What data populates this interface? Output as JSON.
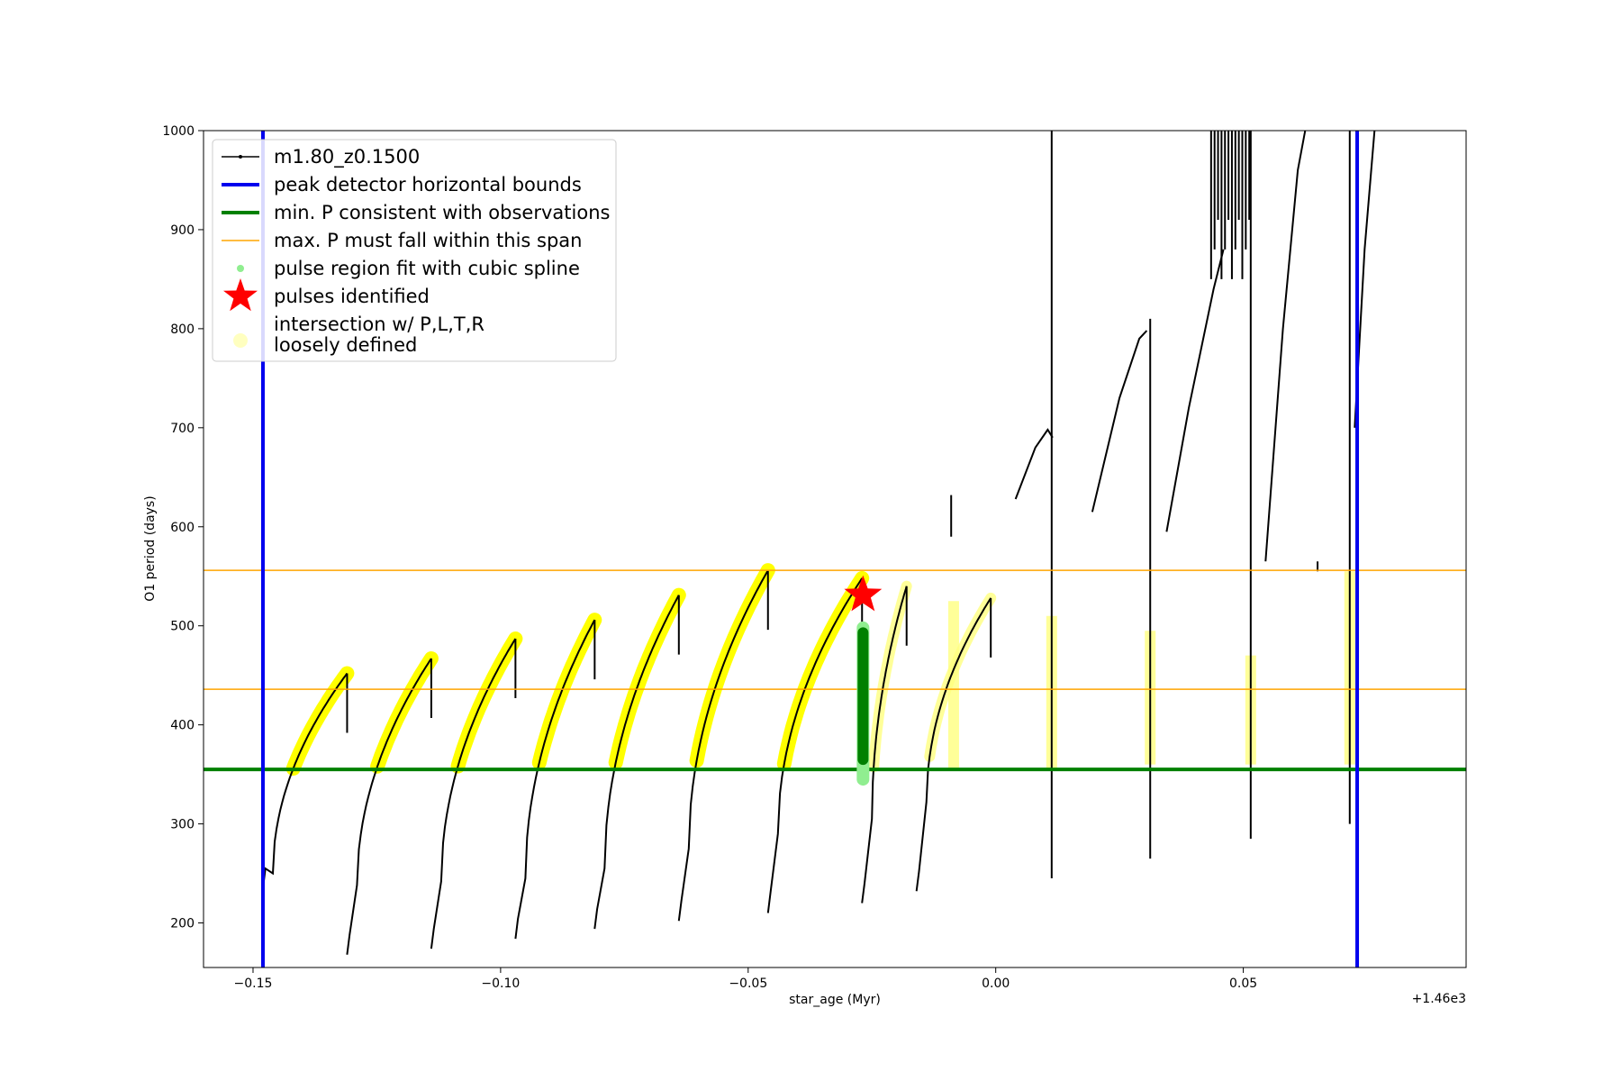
{
  "chart_data": {
    "type": "line",
    "xlabel": "star_age (Myr)",
    "ylabel": "O1 period (days)",
    "x_offset_label": "+1.46e3",
    "xlim": [
      -0.16,
      0.095
    ],
    "ylim": [
      155,
      1000
    ],
    "x_ticks": [
      -0.15,
      -0.1,
      -0.05,
      0.0,
      0.05
    ],
    "x_tick_labels": [
      "−0.15",
      "−0.10",
      "−0.05",
      "0.00",
      "0.05"
    ],
    "y_ticks": [
      200,
      300,
      400,
      500,
      600,
      700,
      800,
      900,
      1000
    ],
    "y_tick_labels": [
      "200",
      "300",
      "400",
      "500",
      "600",
      "700",
      "800",
      "900",
      "1000"
    ],
    "legend_position": "top-left",
    "legend": [
      {
        "label": "m1.80_z0.1500",
        "kind": "line-marker",
        "color": "#000000"
      },
      {
        "label": "peak detector horizontal bounds",
        "kind": "line",
        "color": "#0000ee"
      },
      {
        "label": "min. P consistent with observations",
        "kind": "line",
        "color": "#008000"
      },
      {
        "label": "max. P must fall within this span",
        "kind": "thin-line",
        "color": "#ffa500"
      },
      {
        "label": "pulse region fit with cubic spline",
        "kind": "dot",
        "color": "#90ee90"
      },
      {
        "label": "pulses identified",
        "kind": "star",
        "color": "#ff0000"
      },
      {
        "label": "intersection w/ P,L,T,R\nloosely defined",
        "kind": "big-dot",
        "color": "#ffffc0"
      }
    ],
    "vertical_bounds": {
      "color": "#0000ee",
      "x": [
        -0.148,
        0.073
      ]
    },
    "min_period": {
      "color": "#008000",
      "y": 355
    },
    "max_period_span": {
      "color": "#ffa500",
      "y": [
        436,
        556
      ]
    },
    "cycles": [
      {
        "start": -0.148,
        "end": -0.131,
        "rise_from": 250,
        "peak": 452,
        "drop_to": 235,
        "x_min_offset": 0.002
      },
      {
        "start": -0.131,
        "end": -0.114,
        "rise_from": 238,
        "peak": 467,
        "drop_to": 168,
        "x_min_offset": 0.002
      },
      {
        "start": -0.114,
        "end": -0.097,
        "rise_from": 242,
        "peak": 487,
        "drop_to": 174,
        "x_min_offset": 0.002
      },
      {
        "start": -0.097,
        "end": -0.081,
        "rise_from": 245,
        "peak": 506,
        "drop_to": 184,
        "x_min_offset": 0.002
      },
      {
        "start": -0.081,
        "end": -0.064,
        "rise_from": 255,
        "peak": 531,
        "drop_to": 194,
        "x_min_offset": 0.002
      },
      {
        "start": -0.064,
        "end": -0.046,
        "rise_from": 275,
        "peak": 556,
        "drop_to": 202,
        "x_min_offset": 0.002
      },
      {
        "start": -0.046,
        "end": -0.027,
        "rise_from": 290,
        "peak": 548,
        "drop_to": 210,
        "x_min_offset": 0.002
      },
      {
        "start": -0.027,
        "end": -0.018,
        "rise_from": 305,
        "peak": 540,
        "drop_to": 220,
        "x_min_offset": 0.002
      },
      {
        "start": -0.016,
        "end": -0.001,
        "rise_from": 322,
        "peak": 528,
        "drop_to": 232,
        "x_min_offset": 0.002
      }
    ],
    "upper_branches": [
      {
        "x": [
          0.004,
          0.008,
          0.0105,
          0.0115
        ],
        "y": [
          628,
          680,
          698,
          690
        ]
      },
      {
        "x": [
          0.0195,
          0.025,
          0.029,
          0.0305
        ],
        "y": [
          615,
          730,
          790,
          798
        ]
      },
      {
        "x": [
          0.0345,
          0.039,
          0.044,
          0.046
        ],
        "y": [
          595,
          720,
          840,
          880
        ]
      },
      {
        "x": [
          0.0545,
          0.058,
          0.061,
          0.0625
        ],
        "y": [
          565,
          800,
          960,
          1000
        ]
      },
      {
        "x": [
          0.0725,
          0.0745,
          0.0765
        ],
        "y": [
          700,
          880,
          1000
        ]
      }
    ],
    "spline_band": {
      "x": -0.0268,
      "y_range": [
        345,
        498
      ],
      "color": "#008000"
    },
    "pulse_star": {
      "x": -0.0268,
      "y": 531,
      "color": "#ff0000"
    }
  }
}
